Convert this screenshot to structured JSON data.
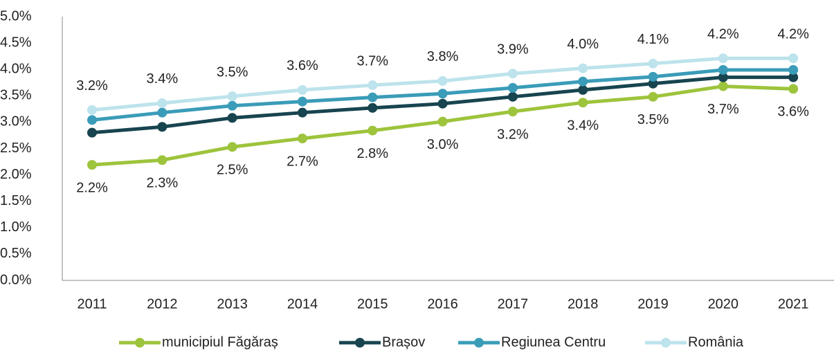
{
  "chart_data": {
    "type": "line",
    "categories": [
      "2011",
      "2012",
      "2013",
      "2014",
      "2015",
      "2016",
      "2017",
      "2018",
      "2019",
      "2020",
      "2021"
    ],
    "ylim": [
      0,
      5
    ],
    "yticks": [
      {
        "value": 0,
        "label": "0.0%"
      },
      {
        "value": 0.5,
        "label": "0.5%"
      },
      {
        "value": 1,
        "label": "1.0%"
      },
      {
        "value": 1.5,
        "label": "1.5%"
      },
      {
        "value": 2,
        "label": "2.0%"
      },
      {
        "value": 2.5,
        "label": "2.5%"
      },
      {
        "value": 3,
        "label": "3.0%"
      },
      {
        "value": 3.5,
        "label": "3.5%"
      },
      {
        "value": 4,
        "label": "4.0%"
      },
      {
        "value": 4.5,
        "label": "4.5%"
      },
      {
        "value": 5,
        "label": "5.0%"
      }
    ],
    "grid": false,
    "legend": "bottom",
    "series": [
      {
        "name": "municipiul Făgăraș",
        "color": "#9dc43c",
        "label_position": "below",
        "values": [
          2.19,
          2.28,
          2.53,
          2.69,
          2.84,
          3.01,
          3.2,
          3.37,
          3.48,
          3.68,
          3.63
        ],
        "value_labels": [
          "2.2%",
          "2.3%",
          "2.5%",
          "2.7%",
          "2.8%",
          "3.0%",
          "3.2%",
          "3.4%",
          "3.5%",
          "3.7%",
          "3.6%"
        ]
      },
      {
        "name": "Brașov",
        "color": "#17444f",
        "values": [
          2.8,
          2.91,
          3.08,
          3.18,
          3.27,
          3.35,
          3.48,
          3.61,
          3.73,
          3.85,
          3.85
        ]
      },
      {
        "name": "Regiunea Centru",
        "color": "#3a9cb8",
        "values": [
          3.04,
          3.18,
          3.31,
          3.39,
          3.47,
          3.54,
          3.65,
          3.77,
          3.86,
          3.99,
          3.99
        ]
      },
      {
        "name": "România",
        "color": "#bde3ec",
        "label_position": "above",
        "values": [
          3.23,
          3.36,
          3.49,
          3.61,
          3.7,
          3.78,
          3.92,
          4.02,
          4.11,
          4.21,
          4.21
        ],
        "value_labels": [
          "3.2%",
          "3.4%",
          "3.5%",
          "3.6%",
          "3.7%",
          "3.8%",
          "3.9%",
          "4.0%",
          "4.1%",
          "4.2%",
          "4.2%"
        ]
      }
    ]
  }
}
